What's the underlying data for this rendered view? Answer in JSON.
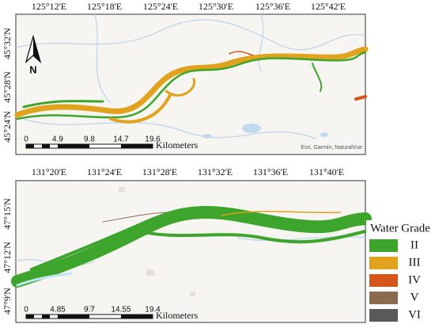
{
  "panels": [
    {
      "lon_labels": [
        "125°12'E",
        "125°18'E",
        "125°24'E",
        "125°30'E",
        "125°36'E",
        "125°42'E"
      ],
      "lat_labels": [
        "45°32'N",
        "45°28'N",
        "45°24'N"
      ],
      "north": "N",
      "scale_labels": [
        0,
        4.9,
        9.8,
        14.7,
        19.6
      ],
      "scale_unit": "Kilometers",
      "attribution": "Esri, Garmin, NaturalVue"
    },
    {
      "lon_labels": [
        "131°20'E",
        "131°24'E",
        "131°28'E",
        "131°32'E",
        "131°36'E",
        "131°40'E"
      ],
      "lat_labels": [
        "47°15'N",
        "47°12'N",
        "47°9'N"
      ],
      "scale_labels": [
        0,
        4.85,
        9.7,
        14.55,
        19.4
      ],
      "scale_unit": "Kilometers"
    }
  ],
  "legend": {
    "title": "Water Grade",
    "items": [
      {
        "label": "II",
        "color": "#3ea52c"
      },
      {
        "label": "III",
        "color": "#e1a21e"
      },
      {
        "label": "IV",
        "color": "#d4561c"
      },
      {
        "label": "V",
        "color": "#8b6b4f"
      },
      {
        "label": "VI",
        "color": "#5a5a5a"
      }
    ]
  }
}
